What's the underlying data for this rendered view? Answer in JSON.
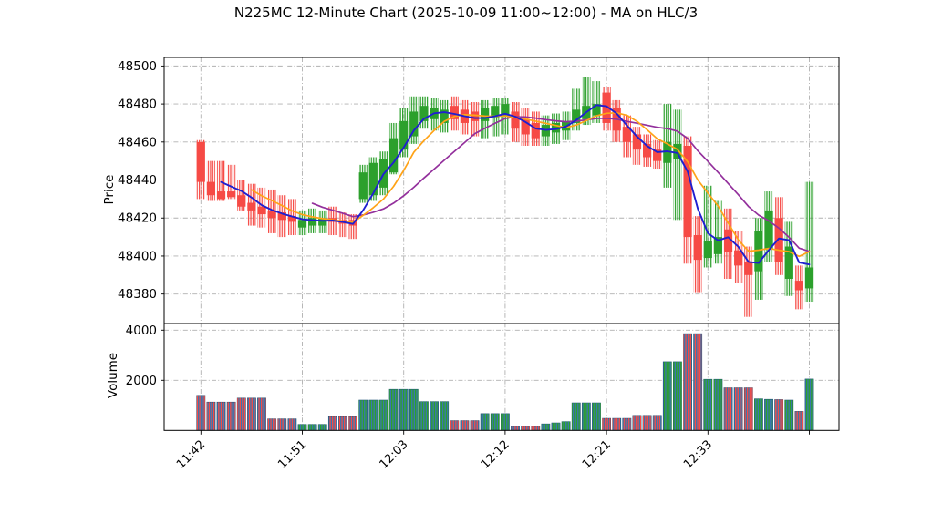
{
  "chart_data": {
    "type": "candlestick+volume",
    "title": "N225MC 12-Minute Chart (2025-10-09 11:00~12:00) - MA on HLC/3",
    "price_panel": {
      "ylabel": "Price",
      "yticks": [
        48380,
        48400,
        48420,
        48440,
        48460,
        48480,
        48500
      ],
      "ylim": [
        48364.5,
        48504.5
      ],
      "grid": true
    },
    "volume_panel": {
      "ylabel": "Volume",
      "yticks": [
        2000,
        4000
      ],
      "ylim": [
        0,
        4265
      ],
      "grid": true
    },
    "x_axis": {
      "tick_labels": [
        "11:42",
        "11:51",
        "12:03",
        "12:12",
        "12:21",
        "12:33",
        ""
      ],
      "tick_indices": [
        0,
        10,
        20,
        30,
        40,
        50,
        60
      ]
    },
    "ma": {
      "source": "HLC/3",
      "series": [
        {
          "name": "ma-fast",
          "period": 3,
          "color": "#1f1fd0"
        },
        {
          "name": "ma-medium",
          "period": 6,
          "color": "#ffa317"
        },
        {
          "name": "ma-slow",
          "period": 12,
          "color": "#93309c"
        }
      ]
    },
    "colors": {
      "up": "#2ca02c",
      "down": "#f64a45",
      "volume_base": "#3a76ae",
      "volume_edge": "#1b4f72",
      "grid": "#b0b0b0",
      "frame": "#000000"
    },
    "candles": {
      "open": [
        48460,
        48439,
        48434,
        48434,
        48432,
        48428,
        48426,
        48424,
        48423,
        48421,
        48415,
        48416,
        48416,
        48420,
        48419,
        48419,
        48430,
        48432,
        48436,
        48444,
        48456,
        48463,
        48471,
        48472,
        48470,
        48479,
        48477,
        48476,
        48471,
        48473,
        48474,
        48476,
        48472,
        48470,
        48463,
        48465,
        48466,
        48470,
        48472,
        48474,
        48486,
        48478,
        48468,
        48464,
        48459,
        48456,
        48449,
        48451,
        48458,
        48411,
        48399,
        48401,
        48414,
        48403,
        48397,
        48392,
        48404,
        48420,
        48388,
        48387,
        48383
      ],
      "high": [
        48461,
        48450,
        48450,
        48448,
        48440,
        48438,
        48436,
        48435,
        48432,
        48430,
        48424,
        48425,
        48424,
        48426,
        48423,
        48422,
        48448,
        48452,
        48455,
        48470,
        48478,
        48484,
        48484,
        48483,
        48482,
        48484,
        48482,
        48481,
        48482,
        48483,
        48483,
        48481,
        48478,
        48476,
        48474,
        48475,
        48476,
        48488,
        48494,
        48492,
        48489,
        48482,
        48474,
        48468,
        48464,
        48461,
        48480,
        48477,
        48463,
        48421,
        48437,
        48429,
        48425,
        48413,
        48405,
        48420,
        48434,
        48431,
        48418,
        48395,
        48439
      ],
      "low": [
        48430,
        48429,
        48429,
        48430,
        48424,
        48416,
        48415,
        48412,
        48410,
        48411,
        48411,
        48412,
        48412,
        48411,
        48410,
        48409,
        48428,
        48429,
        48432,
        48443,
        48452,
        48459,
        48467,
        48466,
        48465,
        48466,
        48464,
        48463,
        48462,
        48463,
        48464,
        48460,
        48458,
        48458,
        48458,
        48459,
        48461,
        48466,
        48469,
        48470,
        48466,
        48460,
        48452,
        48448,
        48447,
        48446,
        48436,
        48419,
        48396,
        48381,
        48394,
        48396,
        48388,
        48386,
        48368,
        48377,
        48397,
        48390,
        48379,
        48372,
        48376
      ],
      "close": [
        48439,
        48432,
        48430,
        48431,
        48426,
        48424,
        48422,
        48420,
        48419,
        48418,
        48419,
        48420,
        48420,
        48418,
        48417,
        48416,
        48444,
        48449,
        48451,
        48462,
        48471,
        48476,
        48479,
        48478,
        48477,
        48472,
        48470,
        48471,
        48478,
        48479,
        48480,
        48467,
        48464,
        48462,
        48469,
        48470,
        48471,
        48477,
        48479,
        48480,
        48470,
        48466,
        48460,
        48456,
        48452,
        48450,
        48460,
        48459,
        48410,
        48398,
        48408,
        48410,
        48402,
        48395,
        48390,
        48413,
        48424,
        48397,
        48405,
        48382,
        48394
      ],
      "volume": [
        1400,
        1130,
        1130,
        1130,
        1290,
        1290,
        1290,
        460,
        460,
        460,
        240,
        240,
        240,
        550,
        550,
        550,
        1210,
        1210,
        1210,
        1640,
        1640,
        1640,
        1150,
        1150,
        1150,
        390,
        390,
        390,
        670,
        670,
        670,
        160,
        160,
        160,
        260,
        300,
        350,
        1100,
        1100,
        1100,
        480,
        480,
        480,
        600,
        600,
        600,
        2740,
        2740,
        3860,
        3860,
        2040,
        2040,
        1700,
        1700,
        1700,
        1260,
        1240,
        1230,
        1210,
        760,
        2050
      ]
    }
  }
}
